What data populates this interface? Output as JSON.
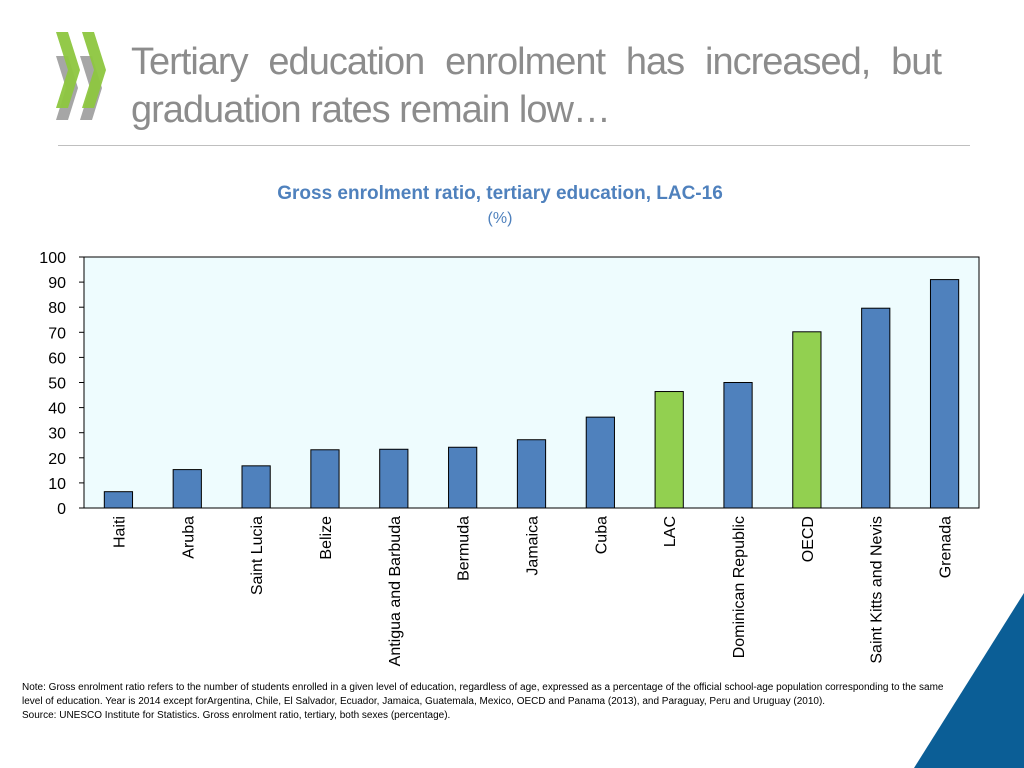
{
  "slide": {
    "title": "Tertiary education enrolment has increased, but graduation rates remain low…"
  },
  "colors": {
    "bar_default": "#4f81bd",
    "bar_highlight": "#92d050",
    "plot_background": "#eefcfe",
    "logo_green": "#8dc63f",
    "logo_grey": "#a6a6a6",
    "corner_blue": "#0b5e96"
  },
  "chart_data": {
    "type": "bar",
    "title": "Gross enrolment ratio, tertiary education, LAC-16",
    "subtitle": "(%)",
    "categories": [
      "Haiti",
      "Aruba",
      "Saint Lucia",
      "Belize",
      "Antigua and Barbuda",
      "Bermuda",
      "Jamaica",
      "Cuba",
      "LAC",
      "Dominican Republic",
      "OECD",
      "Saint Kitts and Nevis",
      "Grenada"
    ],
    "values": [
      6.5,
      15.3,
      16.8,
      23.2,
      23.4,
      24.2,
      27.2,
      36.2,
      46.4,
      50.0,
      70.2,
      79.6,
      91.0
    ],
    "highlight": [
      "LAC",
      "OECD"
    ],
    "ylim": [
      0,
      100
    ],
    "yticks": [
      "0",
      "10",
      "20",
      "30",
      "40",
      "50",
      "60",
      "70",
      "80",
      "90",
      "100"
    ],
    "grid": false,
    "legend": "none"
  },
  "notes": {
    "line1": "Note: Gross enrolment ratio refers to the number of students enrolled in a given level of education, regardless of age, expressed as a percentage of the official school-age population corresponding to the same",
    "line2": "level of education. Year is 2014 except forArgentina, Chile, El Salvador, Ecuador, Jamaica, Guatemala, Mexico, OECD and Panama (2013), and Paraguay, Peru and Uruguay (2010).",
    "source": "Source: UNESCO Institute for Statistics. Gross enrolment ratio, tertiary, both sexes (percentage)."
  }
}
